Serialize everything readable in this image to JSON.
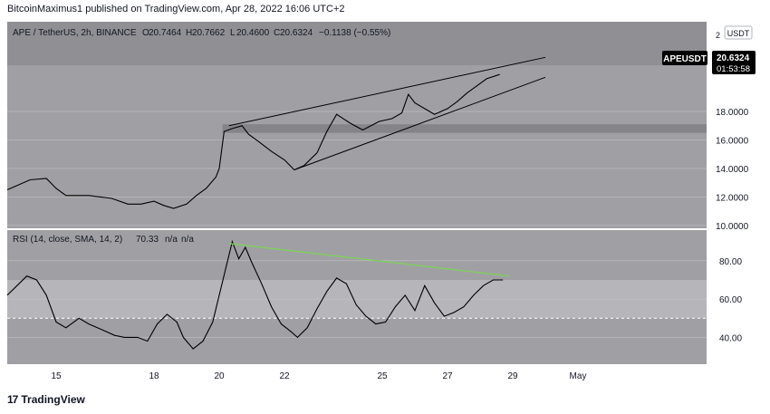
{
  "header": {
    "publisher": "BitcoinMaximus1 published on TradingView.com, Apr 28, 2022 16:06 UTC+2"
  },
  "price_pane": {
    "symbol": "APE / TetherUS, 2h, BINANCE",
    "ohlc": {
      "o_label": "O",
      "o": "20.7464",
      "h_label": "H",
      "h": "20.7662",
      "l_label": "L",
      "l": "20.4600",
      "c_label": "C",
      "c": "20.6324",
      "change": "−0.1138 (−0.55%)"
    },
    "currency_badge": "USDT",
    "last_price_label": "APEUSDT",
    "last_price": "20.6324",
    "countdown": "01:53:58",
    "top_partial_tick": "2"
  },
  "rsi_pane": {
    "legend": "RSI (14, close, SMA, 14, 2)",
    "value": "70.33",
    "na1": "n/a",
    "na2": "n/a"
  },
  "footer": {
    "logo_mark": "17",
    "brand": "TradingView"
  },
  "colors": {
    "pane_bg": "#a0a0a4",
    "upper_band": "#8f8f94",
    "rsi_band": "#b5b5ba",
    "line": "#000000",
    "grid": "#c9c9cc",
    "support_zone": "#6e6e72",
    "divergence": "#7fd05c",
    "price_badge": "#000000"
  },
  "chart_data": [
    {
      "type": "line",
      "title": "APE / TetherUS, 2h, BINANCE",
      "x_tick_labels": [
        "15",
        "18",
        "20",
        "22",
        "25",
        "27",
        "29",
        "May"
      ],
      "y_tick_labels": [
        "10.0000",
        "12.0000",
        "14.0000",
        "16.0000",
        "18.0000",
        "20.6324"
      ],
      "ylim": [
        9.8,
        24.3
      ],
      "support_zone": [
        16.5,
        17.1
      ],
      "series": [
        {
          "x": [
            13.5,
            14.2,
            14.7,
            15.0,
            15.3,
            16.0,
            16.7,
            17.2,
            17.6,
            18.0,
            18.3,
            18.6,
            19.0,
            19.3,
            19.6,
            19.9,
            20.0,
            20.15,
            20.4,
            20.7,
            20.9,
            21.2,
            21.6,
            22.0,
            22.3,
            22.6,
            23.0,
            23.3,
            23.6,
            24.0,
            24.4,
            24.9,
            25.3,
            25.6,
            25.8,
            26.0,
            26.3,
            26.6,
            27.0,
            27.3,
            27.6,
            27.9,
            28.2,
            28.6
          ],
          "values": [
            12.5,
            13.2,
            13.3,
            12.6,
            12.1,
            12.1,
            11.9,
            11.5,
            11.5,
            11.7,
            11.4,
            11.2,
            11.5,
            12.1,
            12.6,
            13.4,
            14.0,
            16.6,
            16.8,
            17.0,
            16.4,
            15.9,
            15.2,
            14.6,
            13.9,
            14.2,
            15.1,
            16.6,
            17.8,
            17.2,
            16.7,
            17.3,
            17.5,
            17.9,
            19.2,
            18.6,
            18.2,
            17.8,
            18.2,
            18.7,
            19.3,
            19.8,
            20.3,
            20.6
          ]
        }
      ],
      "trendlines": [
        {
          "x": [
            20.3,
            30.0
          ],
          "values": [
            17.0,
            21.8
          ]
        },
        {
          "x": [
            22.3,
            30.0
          ],
          "values": [
            13.9,
            20.4
          ]
        }
      ]
    },
    {
      "type": "line",
      "title": "RSI (14, close, SMA, 14, 2)",
      "y_tick_labels": [
        "40.00",
        "60.00",
        "80.00"
      ],
      "ylim": [
        26,
        96
      ],
      "band": [
        50,
        70
      ],
      "series": [
        {
          "x": [
            13.5,
            13.8,
            14.1,
            14.4,
            14.7,
            15.0,
            15.3,
            15.7,
            16.0,
            16.4,
            16.8,
            17.1,
            17.5,
            17.8,
            18.1,
            18.4,
            18.7,
            18.9,
            19.2,
            19.5,
            19.8,
            20.0,
            20.2,
            20.4,
            20.6,
            20.8,
            21.0,
            21.3,
            21.6,
            21.9,
            22.2,
            22.4,
            22.7,
            23.0,
            23.3,
            23.6,
            23.9,
            24.2,
            24.5,
            24.8,
            25.1,
            25.4,
            25.7,
            26.0,
            26.3,
            26.6,
            26.9,
            27.2,
            27.5,
            27.8,
            28.1,
            28.4,
            28.7
          ],
          "values": [
            62,
            67,
            72,
            70,
            62,
            48,
            45,
            50,
            47,
            44,
            41,
            40,
            40,
            38,
            47,
            52,
            48,
            40,
            34,
            38,
            48,
            62,
            76,
            90,
            81,
            87,
            79,
            68,
            56,
            47,
            43,
            40,
            45,
            55,
            64,
            71,
            68,
            57,
            51,
            47,
            48,
            56,
            62,
            54,
            67,
            58,
            51,
            53,
            56,
            62,
            67,
            70,
            70
          ]
        }
      ],
      "divergence": {
        "x": [
          20.3,
          28.9
        ],
        "values": [
          89,
          72
        ]
      }
    }
  ]
}
